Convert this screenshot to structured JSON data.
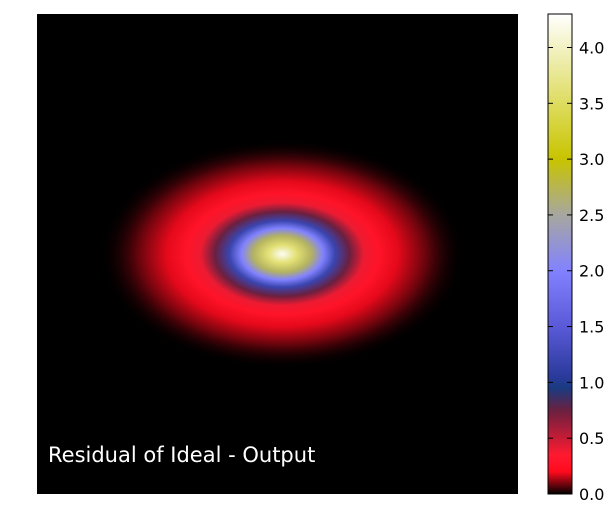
{
  "chart_data": {
    "type": "heatmap",
    "title": "",
    "xlabel": "",
    "ylabel": "",
    "annotation": "Residual of Ideal - Output",
    "description_values": {
      "peak_center_value": 4.25,
      "center_x": 0.51,
      "center_y": 0.5
    },
    "rings": [
      {
        "r": 0.0,
        "value": 4.25
      },
      {
        "r": 0.03,
        "value": 3.6
      },
      {
        "r": 0.06,
        "value": 2.7
      },
      {
        "r": 0.085,
        "value": 2.0
      },
      {
        "r": 0.11,
        "value": 1.2
      },
      {
        "r": 0.14,
        "value": 0.75
      },
      {
        "r": 0.17,
        "value": 0.4
      },
      {
        "r": 0.2,
        "value": 0.28
      },
      {
        "r": 0.24,
        "value": 0.18
      },
      {
        "r": 0.3,
        "value": 0.08
      },
      {
        "r": 0.38,
        "value": 0.0
      }
    ],
    "colorbar": {
      "min": 0.0,
      "max": 4.3,
      "ticks": [
        "0.0",
        "0.5",
        "1.0",
        "1.5",
        "2.0",
        "2.5",
        "3.0",
        "3.5",
        "4.0"
      ],
      "tick_values": [
        0.0,
        0.5,
        1.0,
        1.5,
        2.0,
        2.5,
        3.0,
        3.5,
        4.0
      ],
      "colormap_stops": [
        {
          "v": 0.0,
          "color": "#000000"
        },
        {
          "v": 0.2,
          "color": "#ff0a1e"
        },
        {
          "v": 0.35,
          "color": "#ff1a30"
        },
        {
          "v": 0.75,
          "color": "#6a2040"
        },
        {
          "v": 0.95,
          "color": "#1a3a80"
        },
        {
          "v": 1.05,
          "color": "#2a3a9a"
        },
        {
          "v": 1.5,
          "color": "#5a5ad8"
        },
        {
          "v": 2.0,
          "color": "#8282ff"
        },
        {
          "v": 2.5,
          "color": "#a7a7a0"
        },
        {
          "v": 3.0,
          "color": "#c8c400"
        },
        {
          "v": 3.5,
          "color": "#dedc60"
        },
        {
          "v": 4.3,
          "color": "#ffffff"
        }
      ]
    }
  }
}
